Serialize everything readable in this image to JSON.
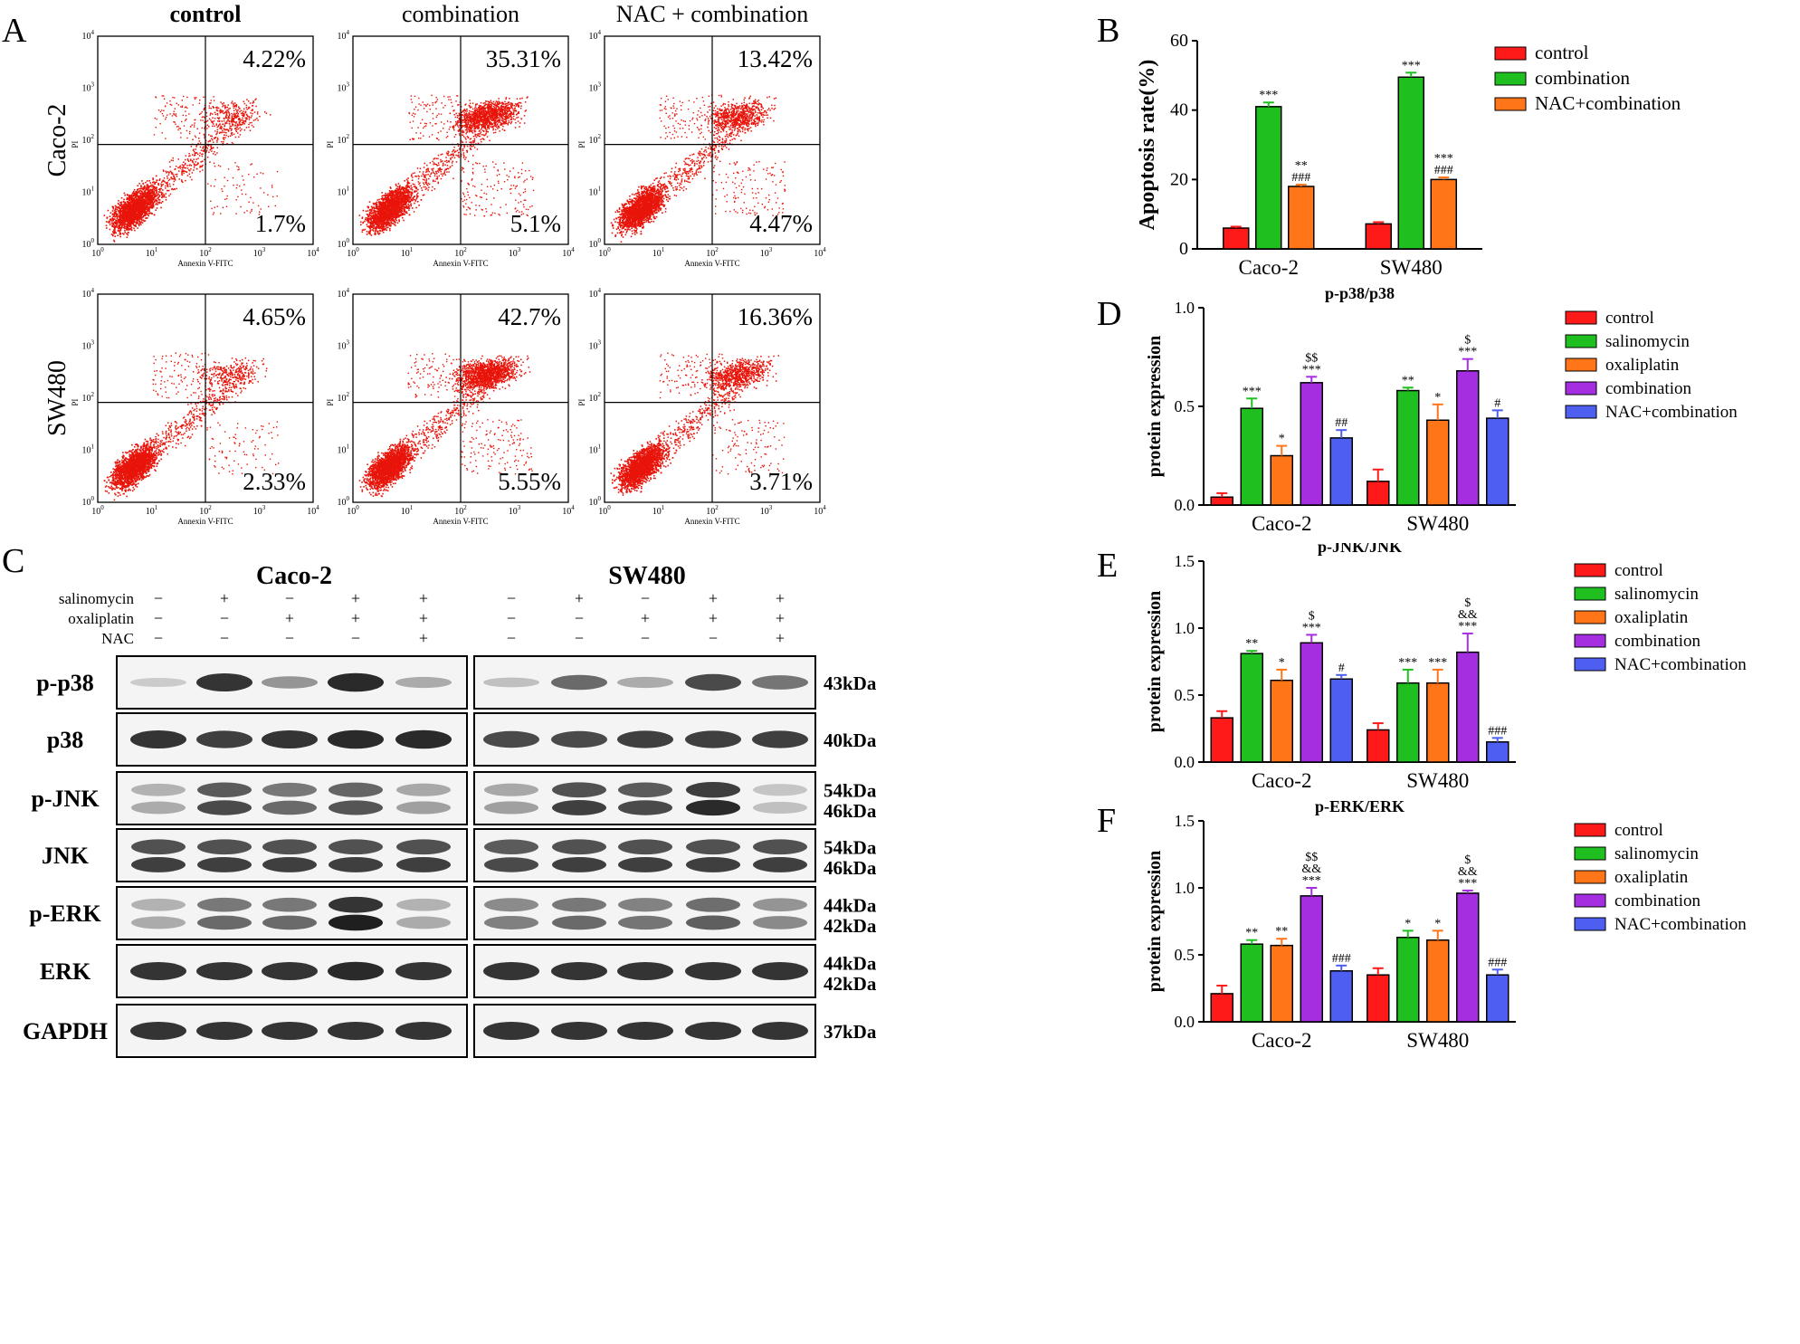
{
  "panel_labels": {
    "a": "A",
    "b": "B",
    "c": "C",
    "d": "D",
    "e": "E",
    "f": "F"
  },
  "flow": {
    "col_titles": [
      "control",
      "combination",
      "NAC + combination"
    ],
    "row_titles": [
      "Caco-2",
      "SW480"
    ],
    "x_label": "Annexin V-FITC",
    "y_label": "PI",
    "tick_base": "10",
    "tick_exps": [
      "0",
      "1",
      "2",
      "3",
      "4"
    ],
    "plots": [
      {
        "row": 0,
        "col": 0,
        "upper_right": "4.22%",
        "lower_right": "1.7%",
        "late_density": 0.12,
        "early_density": 0.05
      },
      {
        "row": 0,
        "col": 1,
        "upper_right": "35.31%",
        "lower_right": "5.1%",
        "late_density": 0.55,
        "early_density": 0.1
      },
      {
        "row": 0,
        "col": 2,
        "upper_right": "13.42%",
        "lower_right": "4.47%",
        "late_density": 0.3,
        "early_density": 0.09
      },
      {
        "row": 1,
        "col": 0,
        "upper_right": "4.65%",
        "lower_right": "2.33%",
        "late_density": 0.13,
        "early_density": 0.06
      },
      {
        "row": 1,
        "col": 1,
        "upper_right": "42.7%",
        "lower_right": "5.55%",
        "late_density": 0.6,
        "early_density": 0.1
      },
      {
        "row": 1,
        "col": 2,
        "upper_right": "16.36%",
        "lower_right": "3.71%",
        "late_density": 0.32,
        "early_density": 0.08
      }
    ]
  },
  "blot": {
    "cell_lines": [
      "Caco-2",
      "SW480"
    ],
    "treatment_rows": [
      {
        "name": "salinomycin",
        "signs": [
          "−",
          "+",
          "−",
          "+",
          "+"
        ]
      },
      {
        "name": "oxaliplatin",
        "signs": [
          "−",
          "−",
          "+",
          "+",
          "+"
        ]
      },
      {
        "name": "NAC",
        "signs": [
          "−",
          "−",
          "−",
          "−",
          "+"
        ]
      }
    ],
    "proteins": [
      {
        "name": "p-p38",
        "kda": [
          "43kDa"
        ],
        "caco": [
          0.15,
          0.85,
          0.4,
          0.9,
          0.3
        ],
        "sw": [
          0.2,
          0.6,
          0.3,
          0.75,
          0.55
        ],
        "bands": 1
      },
      {
        "name": "p38",
        "kda": [
          "40kDa"
        ],
        "caco": [
          0.85,
          0.8,
          0.85,
          0.9,
          0.9
        ],
        "sw": [
          0.75,
          0.75,
          0.8,
          0.8,
          0.8
        ],
        "bands": 1
      },
      {
        "name": "p-JNK",
        "kda": [
          "54kDa",
          "46kDa"
        ],
        "caco": [
          0.3,
          0.75,
          0.6,
          0.7,
          0.35
        ],
        "sw": [
          0.35,
          0.8,
          0.75,
          0.9,
          0.2
        ],
        "bands": 2
      },
      {
        "name": "JNK",
        "kda": [
          "54kDa",
          "46kDa"
        ],
        "caco": [
          0.8,
          0.8,
          0.8,
          0.8,
          0.8
        ],
        "sw": [
          0.75,
          0.8,
          0.8,
          0.8,
          0.8
        ],
        "bands": 2
      },
      {
        "name": "p-ERK",
        "kda": [
          "44kDa",
          "42kDa"
        ],
        "caco": [
          0.3,
          0.6,
          0.6,
          0.95,
          0.3
        ],
        "sw": [
          0.5,
          0.6,
          0.55,
          0.65,
          0.45
        ],
        "bands": 2
      },
      {
        "name": "ERK",
        "kda": [
          "44kDa",
          "42kDa"
        ],
        "caco": [
          0.85,
          0.85,
          0.85,
          0.9,
          0.85
        ],
        "sw": [
          0.85,
          0.85,
          0.85,
          0.85,
          0.85
        ],
        "bands": 1
      },
      {
        "name": "GAPDH",
        "kda": [
          "37kDa"
        ],
        "caco": [
          0.85,
          0.85,
          0.85,
          0.85,
          0.85
        ],
        "sw": [
          0.85,
          0.85,
          0.85,
          0.85,
          0.85
        ],
        "bands": 1
      }
    ]
  },
  "colors": {
    "control": "#ff1a1a",
    "salinomycin": "#1fbf1f",
    "oxaliplatin": "#ff7518",
    "combination": "#a52ee0",
    "nac": "#4d5ef0",
    "dot": "#e8140a"
  },
  "chart_data": [
    {
      "id": "B",
      "type": "bar",
      "title": "",
      "ylabel": "Apoptosis rate(%)",
      "ylim": [
        0,
        60
      ],
      "yticks": [
        "0",
        "20",
        "40",
        "60"
      ],
      "categories": [
        "Caco-2",
        "SW480"
      ],
      "series": [
        {
          "name": "control",
          "color_key": "control",
          "values": [
            6,
            7.2
          ],
          "errors": [
            0.4,
            0.5
          ],
          "marks": [
            "",
            ""
          ]
        },
        {
          "name": "combination",
          "color_key": "salinomycin",
          "values": [
            41,
            49.5
          ],
          "errors": [
            1.2,
            1.3
          ],
          "marks": [
            "***",
            "***"
          ]
        },
        {
          "name": "NAC+combination",
          "color_key": "oxaliplatin",
          "values": [
            18,
            20
          ],
          "errors": [
            0.5,
            0.6
          ],
          "marks": [
            "**\n###",
            "***\n###"
          ]
        }
      ]
    },
    {
      "id": "D",
      "type": "bar",
      "title": "p-p38/p38",
      "ylabel": "protein expression",
      "ylim": [
        0,
        1.0
      ],
      "yticks": [
        "0.0",
        "0.5",
        "1.0"
      ],
      "categories": [
        "Caco-2",
        "SW480"
      ],
      "series": [
        {
          "name": "control",
          "color_key": "control",
          "values": [
            0.04,
            0.12
          ],
          "errors": [
            0.02,
            0.06
          ],
          "marks": [
            "",
            ""
          ]
        },
        {
          "name": "salinomycin",
          "color_key": "salinomycin",
          "values": [
            0.49,
            0.58
          ],
          "errors": [
            0.05,
            0.015
          ],
          "marks": [
            "***",
            "**"
          ]
        },
        {
          "name": "oxaliplatin",
          "color_key": "oxaliplatin",
          "values": [
            0.25,
            0.43
          ],
          "errors": [
            0.05,
            0.08
          ],
          "marks": [
            "*",
            "*"
          ]
        },
        {
          "name": "combination",
          "color_key": "combination",
          "values": [
            0.62,
            0.68
          ],
          "errors": [
            0.03,
            0.06
          ],
          "marks": [
            "$$\n***",
            "$\n***"
          ]
        },
        {
          "name": "NAC+combination",
          "color_key": "nac",
          "values": [
            0.34,
            0.44
          ],
          "errors": [
            0.04,
            0.04
          ],
          "marks": [
            "##",
            "#"
          ]
        }
      ]
    },
    {
      "id": "E",
      "type": "bar",
      "title": "p-JNK/JNK",
      "ylabel": "protein expression",
      "ylim": [
        0,
        1.5
      ],
      "yticks": [
        "0.0",
        "0.5",
        "1.0",
        "1.5"
      ],
      "categories": [
        "Caco-2",
        "SW480"
      ],
      "series": [
        {
          "name": "control",
          "color_key": "control",
          "values": [
            0.33,
            0.24
          ],
          "errors": [
            0.05,
            0.05
          ],
          "marks": [
            "",
            ""
          ]
        },
        {
          "name": "salinomycin",
          "color_key": "salinomycin",
          "values": [
            0.81,
            0.59
          ],
          "errors": [
            0.02,
            0.1
          ],
          "marks": [
            "**",
            "***"
          ]
        },
        {
          "name": "oxaliplatin",
          "color_key": "oxaliplatin",
          "values": [
            0.61,
            0.59
          ],
          "errors": [
            0.08,
            0.1
          ],
          "marks": [
            "*",
            "***"
          ]
        },
        {
          "name": "combination",
          "color_key": "combination",
          "values": [
            0.89,
            0.82
          ],
          "errors": [
            0.06,
            0.14
          ],
          "marks": [
            "$\n***",
            "$\n&&\n***"
          ]
        },
        {
          "name": "NAC+combination",
          "color_key": "nac",
          "values": [
            0.62,
            0.15
          ],
          "errors": [
            0.03,
            0.03
          ],
          "marks": [
            "#",
            "###"
          ]
        }
      ]
    },
    {
      "id": "F",
      "type": "bar",
      "title": "p-ERK/ERK",
      "ylabel": "protein expression",
      "ylim": [
        0,
        1.5
      ],
      "yticks": [
        "0.0",
        "0.5",
        "1.0",
        "1.5"
      ],
      "categories": [
        "Caco-2",
        "SW480"
      ],
      "series": [
        {
          "name": "control",
          "color_key": "control",
          "values": [
            0.21,
            0.35
          ],
          "errors": [
            0.06,
            0.05
          ],
          "marks": [
            "",
            ""
          ]
        },
        {
          "name": "salinomycin",
          "color_key": "salinomycin",
          "values": [
            0.58,
            0.63
          ],
          "errors": [
            0.03,
            0.05
          ],
          "marks": [
            "**",
            "*"
          ]
        },
        {
          "name": "oxaliplatin",
          "color_key": "oxaliplatin",
          "values": [
            0.57,
            0.61
          ],
          "errors": [
            0.05,
            0.07
          ],
          "marks": [
            "**",
            "*"
          ]
        },
        {
          "name": "combination",
          "color_key": "combination",
          "values": [
            0.94,
            0.96
          ],
          "errors": [
            0.06,
            0.02
          ],
          "marks": [
            "$$\n&&\n***",
            "$\n&&\n***"
          ]
        },
        {
          "name": "NAC+combination",
          "color_key": "nac",
          "values": [
            0.38,
            0.35
          ],
          "errors": [
            0.04,
            0.04
          ],
          "marks": [
            "###",
            "###"
          ]
        }
      ]
    }
  ]
}
